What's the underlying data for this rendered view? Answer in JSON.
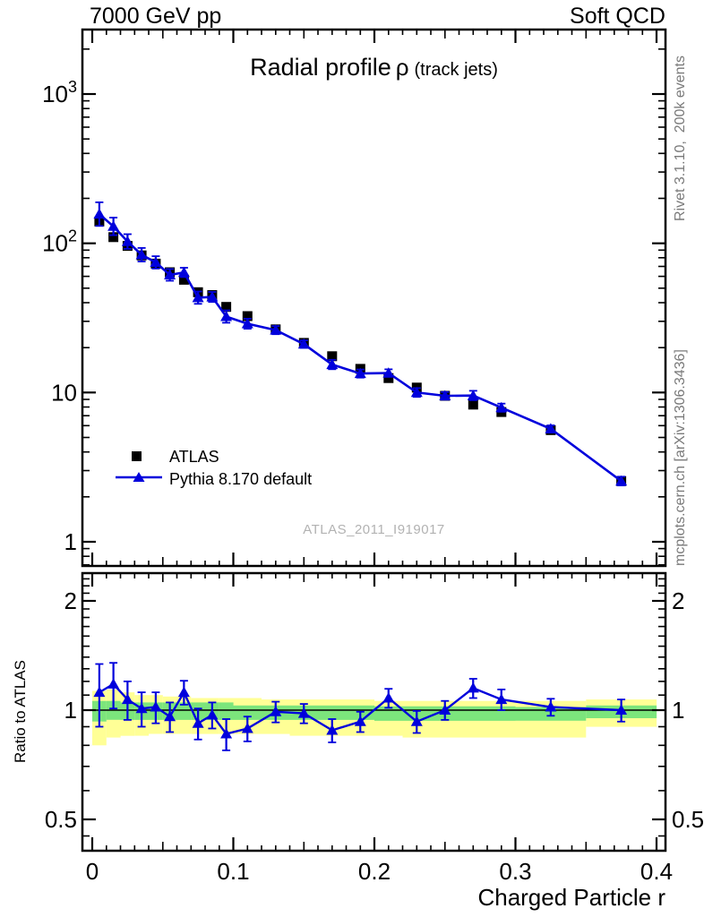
{
  "header": {
    "left": "7000 GeV pp",
    "right": "Soft QCD"
  },
  "title": {
    "main": "Radial profile",
    "symbol": "ρ",
    "qualifier": "(track jets)"
  },
  "watermark": "ATLAS_2011_I919017",
  "side_notes": {
    "rivet": "Rivet 3.1.10,  200k events",
    "mcplots": "mcplots.cern.ch [arXiv:1306.3436]"
  },
  "legend": {
    "items": [
      {
        "label": "ATLAS",
        "marker": "black-square"
      },
      {
        "label": "Pythia 8.170 default",
        "marker": "blue-triangle-line"
      }
    ]
  },
  "colors": {
    "data_black": "#000000",
    "mc_blue": "#0000dc",
    "band_yellow": "#ffff96",
    "band_green": "#7ce57c",
    "side_gray": "#7a7a7a",
    "watermark_gray": "#b2b2b2"
  },
  "chart_data": {
    "type": "scatter",
    "title": "Radial profile ρ (track jets)",
    "xlabel": "Charged Particle r",
    "ratio_ylabel": "Ratio to ATLAS",
    "x_range": [
      0,
      0.4
    ],
    "main_y_scale": "log",
    "main_y_range": [
      0.69,
      2700
    ],
    "ratio_y_scale": "log",
    "ratio_y_range": [
      0.41,
      2.38
    ],
    "x_ticks": {
      "major": [
        {
          "v": 0,
          "label": "0"
        },
        {
          "v": 0.1,
          "label": "0.1"
        },
        {
          "v": 0.2,
          "label": "0.2"
        },
        {
          "v": 0.3,
          "label": "0.3"
        },
        {
          "v": 0.4,
          "label": "0.4"
        }
      ],
      "medium_step": 0.05,
      "minor_step": 0.01
    },
    "main_y_ticks": [
      {
        "v": 1,
        "base": "1",
        "exp": ""
      },
      {
        "v": 10,
        "base": "10",
        "exp": ""
      },
      {
        "v": 100,
        "base": "10",
        "exp": "2"
      },
      {
        "v": 1000,
        "base": "10",
        "exp": "3"
      }
    ],
    "ratio_y_ticks": {
      "labeled": [
        {
          "v": 0.5,
          "label": "0.5"
        },
        {
          "v": 1,
          "label": "1"
        },
        {
          "v": 2,
          "label": "2"
        }
      ],
      "minor": [
        0.45,
        0.6,
        0.7,
        0.8,
        0.9,
        1.1,
        1.2,
        1.3,
        1.4,
        1.5,
        1.6,
        1.7,
        1.8,
        1.9,
        2.1,
        2.2,
        2.3
      ]
    },
    "x": [
      0.005,
      0.015,
      0.025,
      0.035,
      0.045,
      0.055,
      0.065,
      0.075,
      0.085,
      0.095,
      0.11,
      0.13,
      0.15,
      0.17,
      0.19,
      0.21,
      0.23,
      0.25,
      0.27,
      0.29,
      0.325,
      0.375
    ],
    "bin_edges": [
      0,
      0.01,
      0.02,
      0.03,
      0.04,
      0.05,
      0.06,
      0.07,
      0.08,
      0.09,
      0.1,
      0.12,
      0.14,
      0.16,
      0.18,
      0.2,
      0.22,
      0.24,
      0.26,
      0.28,
      0.3,
      0.35,
      0.4
    ],
    "series": [
      {
        "name": "ATLAS",
        "marker": "square",
        "color": "#000000",
        "values": [
          140,
          110,
          96,
          83,
          73,
          64,
          57,
          47,
          45,
          37.5,
          32.5,
          26.5,
          21.5,
          17.5,
          14.4,
          12.5,
          10.8,
          9.5,
          8.3,
          7.4,
          5.6,
          2.55
        ]
      },
      {
        "name": "Pythia 8.170 default",
        "marker": "triangle",
        "color": "#0000dc",
        "values": [
          156.8,
          129.8,
          102.7,
          83.8,
          74.5,
          61.4,
          63.8,
          43.2,
          43.7,
          32.3,
          28.9,
          26.2,
          21.1,
          15.4,
          13.4,
          13.5,
          10.0,
          9.5,
          9.55,
          7.92,
          5.71,
          2.55
        ],
        "err_frac": [
          0.2,
          0.145,
          0.12,
          0.11,
          0.1,
          0.095,
          0.075,
          0.1,
          0.08,
          0.1,
          0.08,
          0.065,
          0.06,
          0.075,
          0.065,
          0.06,
          0.07,
          0.06,
          0.075,
          0.065,
          0.055,
          0.07
        ]
      }
    ],
    "ratio": {
      "reference": "ATLAS",
      "values": [
        1.12,
        1.18,
        1.07,
        1.01,
        1.02,
        0.96,
        1.12,
        0.92,
        0.97,
        0.86,
        0.89,
        0.99,
        0.98,
        0.88,
        0.93,
        1.08,
        0.93,
        1.0,
        1.15,
        1.07,
        1.02,
        1.0
      ],
      "err": [
        0.22,
        0.17,
        0.13,
        0.11,
        0.1,
        0.09,
        0.085,
        0.09,
        0.08,
        0.085,
        0.07,
        0.065,
        0.06,
        0.065,
        0.06,
        0.065,
        0.065,
        0.06,
        0.07,
        0.07,
        0.055,
        0.07
      ]
    },
    "bands": {
      "yellow": [
        [
          0.8,
          1.13
        ],
        [
          0.84,
          1.14
        ],
        [
          0.85,
          1.12
        ],
        [
          0.85,
          1.1
        ],
        [
          0.86,
          1.1
        ],
        [
          0.86,
          1.09
        ],
        [
          0.86,
          1.09
        ],
        [
          0.86,
          1.08
        ],
        [
          0.86,
          1.08
        ],
        [
          0.86,
          1.08
        ],
        [
          0.86,
          1.08
        ],
        [
          0.86,
          1.07
        ],
        [
          0.85,
          1.07
        ],
        [
          0.85,
          1.07
        ],
        [
          0.85,
          1.07
        ],
        [
          0.85,
          1.06
        ],
        [
          0.84,
          1.06
        ],
        [
          0.84,
          1.06
        ],
        [
          0.84,
          1.06
        ],
        [
          0.84,
          1.06
        ],
        [
          0.84,
          1.06
        ],
        [
          0.9,
          1.07
        ]
      ],
      "green": [
        [
          0.93,
          1.06
        ],
        [
          0.94,
          1.06
        ],
        [
          0.94,
          1.05
        ],
        [
          0.94,
          1.05
        ],
        [
          0.94,
          1.05
        ],
        [
          0.94,
          1.05
        ],
        [
          0.94,
          1.05
        ],
        [
          0.94,
          1.05
        ],
        [
          0.94,
          1.05
        ],
        [
          0.94,
          1.05
        ],
        [
          0.94,
          1.03
        ],
        [
          0.94,
          1.03
        ],
        [
          0.94,
          1.03
        ],
        [
          0.94,
          1.03
        ],
        [
          0.94,
          1.03
        ],
        [
          0.935,
          1.025
        ],
        [
          0.935,
          1.025
        ],
        [
          0.935,
          1.025
        ],
        [
          0.935,
          1.025
        ],
        [
          0.935,
          1.025
        ],
        [
          0.935,
          1.02
        ],
        [
          0.95,
          1.03
        ]
      ]
    }
  }
}
